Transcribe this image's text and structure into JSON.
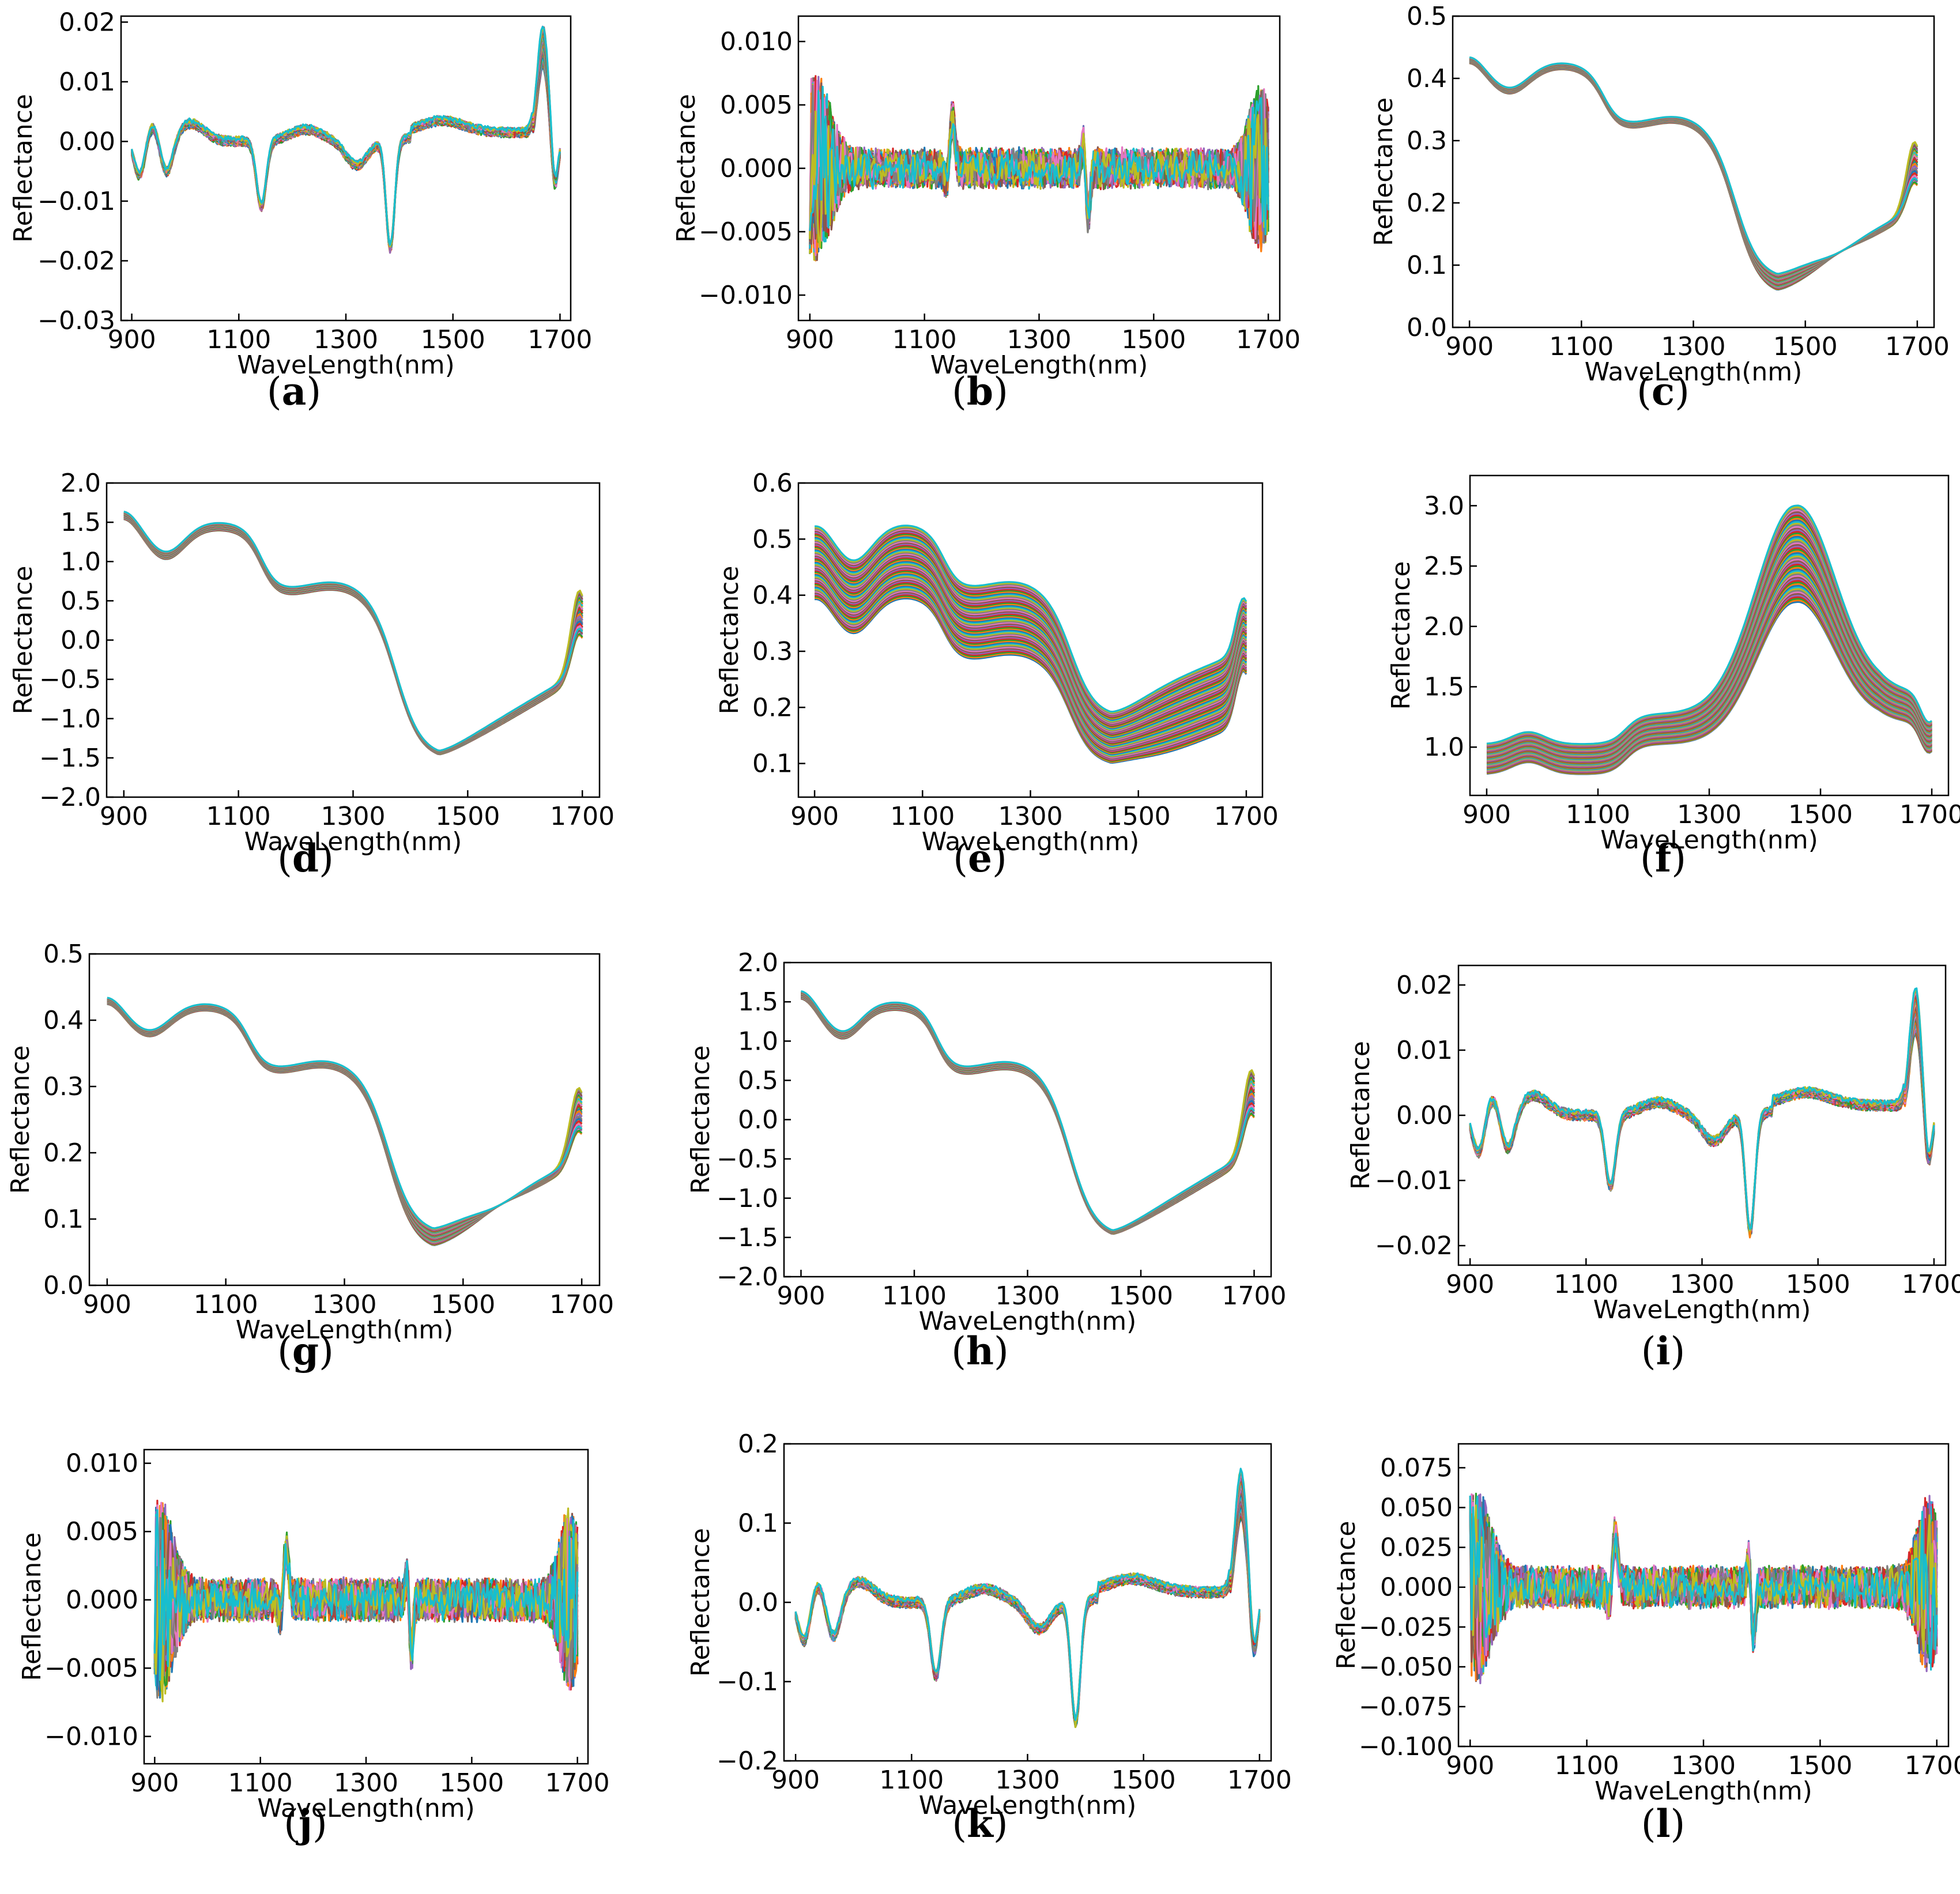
{
  "figure": {
    "panel_letters": [
      "a",
      "b",
      "c",
      "d",
      "e",
      "f",
      "g",
      "h",
      "i",
      "j",
      "k",
      "l"
    ]
  },
  "chart_data": [
    {
      "id": "a",
      "type": "line",
      "title": "",
      "xlabel": "WaveLength(nm)",
      "ylabel": "Reflectance",
      "xlim": [
        880,
        1720
      ],
      "ylim": [
        -0.03,
        0.021
      ],
      "xticks": [
        900,
        1100,
        1300,
        1500,
        1700
      ],
      "yticks": [
        -0.03,
        -0.02,
        -0.01,
        0.0,
        0.01,
        0.02
      ],
      "ytick_labels": [
        "−0.03",
        "−0.02",
        "−0.01",
        "0.00",
        "0.01",
        "0.02"
      ],
      "series_count": 40,
      "profile": "first_derivative",
      "amplitude": 1.0,
      "spread": 0.1
    },
    {
      "id": "b",
      "type": "line",
      "title": "",
      "xlabel": "WaveLength(nm)",
      "ylabel": "Reflectance",
      "xlim": [
        880,
        1720
      ],
      "ylim": [
        -0.012,
        0.012
      ],
      "xticks": [
        900,
        1100,
        1300,
        1500,
        1700
      ],
      "yticks": [
        -0.01,
        -0.005,
        0.0,
        0.005,
        0.01
      ],
      "ytick_labels": [
        "−0.010",
        "−0.005",
        "0.000",
        "0.005",
        "0.010"
      ],
      "series_count": 40,
      "profile": "second_derivative",
      "amplitude": 0.006,
      "noise": 0.0012
    },
    {
      "id": "c",
      "type": "line",
      "title": "",
      "xlabel": "WaveLength(nm)",
      "ylabel": "Reflectance",
      "xlim": [
        870,
        1730
      ],
      "ylim": [
        0.0,
        0.5
      ],
      "xticks": [
        900,
        1100,
        1300,
        1500,
        1700
      ],
      "yticks": [
        0.0,
        0.1,
        0.2,
        0.3,
        0.4,
        0.5
      ],
      "ytick_labels": [
        "0.0",
        "0.1",
        "0.2",
        "0.3",
        "0.4",
        "0.5"
      ],
      "series_count": 40,
      "profile": "msc",
      "amplitude": 1.0,
      "spread": 0.08
    },
    {
      "id": "d",
      "type": "line",
      "title": "",
      "xlabel": "WaveLength(nm)",
      "ylabel": "Reflectance",
      "xlim": [
        870,
        1730
      ],
      "ylim": [
        -2.0,
        2.0
      ],
      "xticks": [
        900,
        1100,
        1300,
        1500,
        1700
      ],
      "yticks": [
        -2.0,
        -1.5,
        -1.0,
        -0.5,
        0.0,
        0.5,
        1.0,
        1.5,
        2.0
      ],
      "ytick_labels": [
        "−2.0",
        "−1.5",
        "−1.0",
        "−0.5",
        "0.0",
        "0.5",
        "1.0",
        "1.5",
        "2.0"
      ],
      "series_count": 40,
      "profile": "snv",
      "amplitude": 1.0,
      "spread": 0.08
    },
    {
      "id": "e",
      "type": "line",
      "title": "",
      "xlabel": "WaveLength(nm)",
      "ylabel": "Reflectance",
      "xlim": [
        870,
        1730
      ],
      "ylim": [
        0.04,
        0.6
      ],
      "xticks": [
        900,
        1100,
        1300,
        1500,
        1700
      ],
      "yticks": [
        0.1,
        0.2,
        0.3,
        0.4,
        0.5,
        0.6
      ],
      "ytick_labels": [
        "0.1",
        "0.2",
        "0.3",
        "0.4",
        "0.5",
        "0.6"
      ],
      "series_count": 60,
      "profile": "raw",
      "amplitude": 1.0,
      "spread": 0.22
    },
    {
      "id": "f",
      "type": "line",
      "title": "",
      "xlabel": "WaveLength(nm)",
      "ylabel": "Reflectance",
      "xlim": [
        870,
        1730
      ],
      "ylim": [
        0.6,
        3.25
      ],
      "xticks": [
        900,
        1100,
        1300,
        1500,
        1700
      ],
      "yticks": [
        1.0,
        1.5,
        2.0,
        2.5,
        3.0
      ],
      "ytick_labels": [
        "1.0",
        "1.5",
        "2.0",
        "2.5",
        "3.0"
      ],
      "series_count": 60,
      "profile": "absorbance",
      "amplitude": 1.0,
      "spread": 0.2
    },
    {
      "id": "g",
      "type": "line",
      "title": "",
      "xlabel": "WaveLength(nm)",
      "ylabel": "Reflectance",
      "xlim": [
        870,
        1730
      ],
      "ylim": [
        0.0,
        0.5
      ],
      "xticks": [
        900,
        1100,
        1300,
        1500,
        1700
      ],
      "yticks": [
        0.0,
        0.1,
        0.2,
        0.3,
        0.4,
        0.5
      ],
      "ytick_labels": [
        "0.0",
        "0.1",
        "0.2",
        "0.3",
        "0.4",
        "0.5"
      ],
      "series_count": 40,
      "profile": "msc",
      "amplitude": 1.0,
      "spread": 0.08
    },
    {
      "id": "h",
      "type": "line",
      "title": "",
      "xlabel": "WaveLength(nm)",
      "ylabel": "Reflectance",
      "xlim": [
        870,
        1730
      ],
      "ylim": [
        -2.0,
        2.0
      ],
      "xticks": [
        900,
        1100,
        1300,
        1500,
        1700
      ],
      "yticks": [
        -2.0,
        -1.5,
        -1.0,
        -0.5,
        0.0,
        0.5,
        1.0,
        1.5,
        2.0
      ],
      "ytick_labels": [
        "−2.0",
        "−1.5",
        "−1.0",
        "−0.5",
        "0.0",
        "0.5",
        "1.0",
        "1.5",
        "2.0"
      ],
      "series_count": 40,
      "profile": "snv",
      "amplitude": 1.0,
      "spread": 0.08
    },
    {
      "id": "i",
      "type": "line",
      "title": "",
      "xlabel": "WaveLength(nm)",
      "ylabel": "Reflectance",
      "xlim": [
        880,
        1720
      ],
      "ylim": [
        -0.023,
        0.023
      ],
      "xticks": [
        900,
        1100,
        1300,
        1500,
        1700
      ],
      "yticks": [
        -0.02,
        -0.01,
        0.0,
        0.01,
        0.02
      ],
      "ytick_labels": [
        "−0.02",
        "−0.01",
        "0.00",
        "0.01",
        "0.02"
      ],
      "series_count": 40,
      "profile": "first_derivative",
      "amplitude": 1.0,
      "spread": 0.1
    },
    {
      "id": "j",
      "type": "line",
      "title": "",
      "xlabel": "WaveLength(nm)",
      "ylabel": "Reflectance",
      "xlim": [
        880,
        1720
      ],
      "ylim": [
        -0.012,
        0.011
      ],
      "xticks": [
        900,
        1100,
        1300,
        1500,
        1700
      ],
      "yticks": [
        -0.01,
        -0.005,
        0.0,
        0.005,
        0.01
      ],
      "ytick_labels": [
        "−0.010",
        "−0.005",
        "0.000",
        "0.005",
        "0.010"
      ],
      "series_count": 40,
      "profile": "second_derivative",
      "amplitude": 0.006,
      "noise": 0.0012
    },
    {
      "id": "k",
      "type": "line",
      "title": "",
      "xlabel": "WaveLength(nm)",
      "ylabel": "Reflectance",
      "xlim": [
        880,
        1720
      ],
      "ylim": [
        -0.2,
        0.2
      ],
      "xticks": [
        900,
        1100,
        1300,
        1500,
        1700
      ],
      "yticks": [
        -0.2,
        -0.1,
        0.0,
        0.1,
        0.2
      ],
      "ytick_labels": [
        "−0.2",
        "−0.1",
        "0.0",
        "0.1",
        "0.2"
      ],
      "series_count": 40,
      "profile": "first_derivative",
      "amplitude": 8.5,
      "spread": 0.1
    },
    {
      "id": "l",
      "type": "line",
      "title": "",
      "xlabel": "WaveLength(nm)",
      "ylabel": "Reflectance",
      "xlim": [
        880,
        1720
      ],
      "ylim": [
        -0.1,
        0.09
      ],
      "xticks": [
        900,
        1100,
        1300,
        1500,
        1700
      ],
      "yticks": [
        -0.1,
        -0.075,
        -0.05,
        -0.025,
        0.0,
        0.025,
        0.05,
        0.075
      ],
      "ytick_labels": [
        "−0.100",
        "−0.075",
        "−0.050",
        "−0.025",
        "0.000",
        "0.025",
        "0.050",
        "0.075"
      ],
      "series_count": 40,
      "profile": "second_derivative",
      "amplitude": 0.05,
      "noise": 0.01
    }
  ],
  "palette": [
    "#1f77b4",
    "#ff7f0e",
    "#2ca02c",
    "#d62728",
    "#9467bd",
    "#8c564b",
    "#e377c2",
    "#7f7f7f",
    "#bcbd22",
    "#17becf"
  ]
}
